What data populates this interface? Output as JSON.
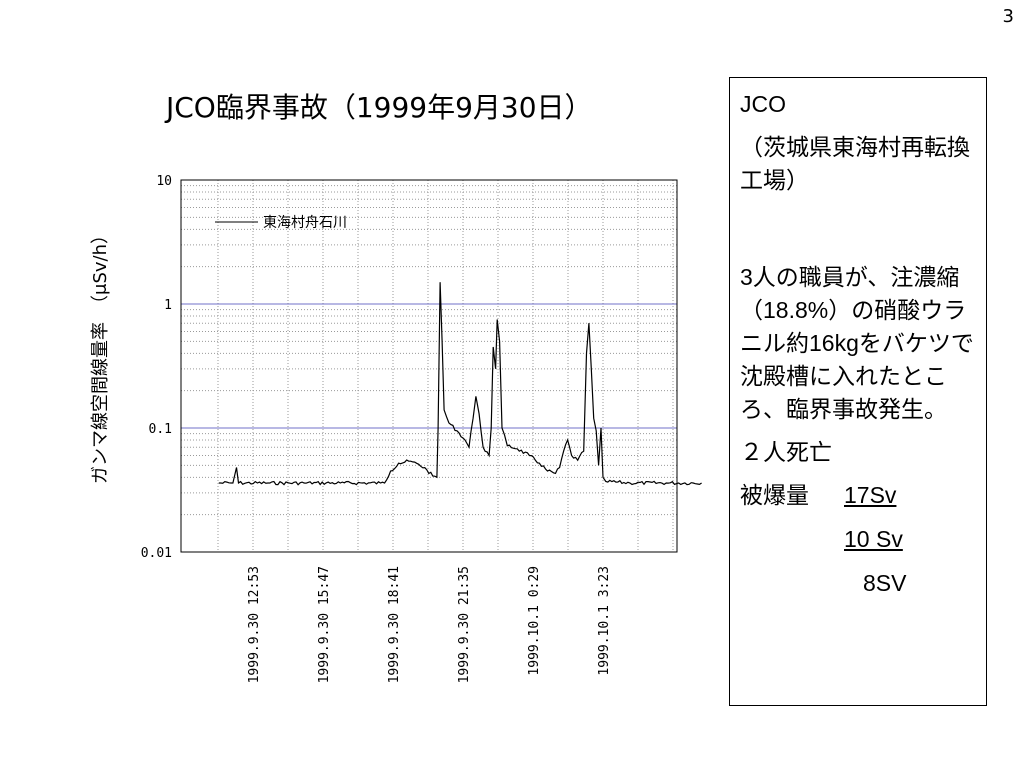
{
  "page_number": "3",
  "title": "JCO臨界事故（1999年9月30日）",
  "side_panel": {
    "company": "JCO",
    "location": "（茨城県東海村再転換工場）",
    "description": "3人の職員が、注濃縮（18.8%）の硝酸ウラニル約16kgをバケツで沈殿槽に入れたところ、臨界事故発生。",
    "deaths": "２人死亡",
    "exposure_label": "被爆量",
    "exposures": [
      "17Sv",
      "10 Sv",
      "8SV"
    ]
  },
  "chart_data": {
    "type": "line",
    "ylabel": "ガンマ線空間線量率　（μSv/h）",
    "yscale": "log",
    "ylim": [
      0.01,
      10
    ],
    "yticks": [
      "10",
      "1",
      "0.1",
      "0.01"
    ],
    "xticks": [
      "1999.9.30 12:53",
      "1999.9.30 15:47",
      "1999.9.30 18:41",
      "1999.9.30 21:35",
      "1999.10.1 0:29",
      "1999.10.1 3:23"
    ],
    "grid": true,
    "legend_position": "top-left",
    "series": [
      {
        "name": "東海村舟石川",
        "points": [
          [
            "1999.9.30 11:28",
            0.036
          ],
          [
            "1999.9.30 12:03",
            0.036
          ],
          [
            "1999.9.30 12:12",
            0.048
          ],
          [
            "1999.9.30 12:17",
            0.036
          ],
          [
            "1999.9.30 13:30",
            0.036
          ],
          [
            "1999.9.30 15:00",
            0.036
          ],
          [
            "1999.9.30 16:30",
            0.036
          ],
          [
            "1999.9.30 18:10",
            0.036
          ],
          [
            "1999.9.30 18:20",
            0.036
          ],
          [
            "1999.9.30 18:35",
            0.045
          ],
          [
            "1999.9.30 18:55",
            0.052
          ],
          [
            "1999.9.30 19:20",
            0.054
          ],
          [
            "1999.9.30 19:45",
            0.051
          ],
          [
            "1999.9.30 20:05",
            0.046
          ],
          [
            "1999.9.30 20:20",
            0.041
          ],
          [
            "1999.9.30 20:30",
            0.04
          ],
          [
            "1999.9.30 20:33",
            0.1
          ],
          [
            "1999.9.30 20:38",
            1.5
          ],
          [
            "1999.9.30 20:43",
            0.5
          ],
          [
            "1999.9.30 20:48",
            0.14
          ],
          [
            "1999.9.30 21:00",
            0.11
          ],
          [
            "1999.9.30 21:20",
            0.095
          ],
          [
            "1999.9.30 21:40",
            0.08
          ],
          [
            "1999.9.30 21:50",
            0.07
          ],
          [
            "1999.9.30 22:00",
            0.12
          ],
          [
            "1999.9.30 22:07",
            0.18
          ],
          [
            "1999.9.30 22:15",
            0.13
          ],
          [
            "1999.9.30 22:25",
            0.07
          ],
          [
            "1999.9.30 22:40",
            0.06
          ],
          [
            "1999.9.30 22:45",
            0.1
          ],
          [
            "1999.9.30 22:50",
            0.45
          ],
          [
            "1999.9.30 22:56",
            0.3
          ],
          [
            "1999.9.30 23:00",
            0.75
          ],
          [
            "1999.9.30 23:06",
            0.5
          ],
          [
            "1999.9.30 23:12",
            0.1
          ],
          [
            "1999.9.30 23:25",
            0.072
          ],
          [
            "1999.9.30 23:50",
            0.068
          ],
          [
            "1999.10.1 0:20",
            0.06
          ],
          [
            "1999.10.1 0:45",
            0.052
          ],
          [
            "1999.10.1 1:05",
            0.045
          ],
          [
            "1999.10.1 1:25",
            0.043
          ],
          [
            "1999.10.1 1:35",
            0.048
          ],
          [
            "1999.10.1 1:45",
            0.065
          ],
          [
            "1999.10.1 1:55",
            0.08
          ],
          [
            "1999.10.1 2:05",
            0.06
          ],
          [
            "1999.10.1 2:20",
            0.055
          ],
          [
            "1999.10.1 2:35",
            0.065
          ],
          [
            "1999.10.1 2:42",
            0.4
          ],
          [
            "1999.10.1 2:48",
            0.7
          ],
          [
            "1999.10.1 2:54",
            0.3
          ],
          [
            "1999.10.1 3:00",
            0.12
          ],
          [
            "1999.10.1 3:06",
            0.095
          ],
          [
            "1999.10.1 3:12",
            0.05
          ],
          [
            "1999.10.1 3:18",
            0.1
          ],
          [
            "1999.10.1 3:23",
            0.04
          ],
          [
            "1999.10.1 3:30",
            0.037
          ],
          [
            "1999.10.1 4:30",
            0.036
          ],
          [
            "1999.10.1 6:00",
            0.036
          ],
          [
            "1999.10.1 7:28",
            0.036
          ]
        ]
      }
    ]
  }
}
